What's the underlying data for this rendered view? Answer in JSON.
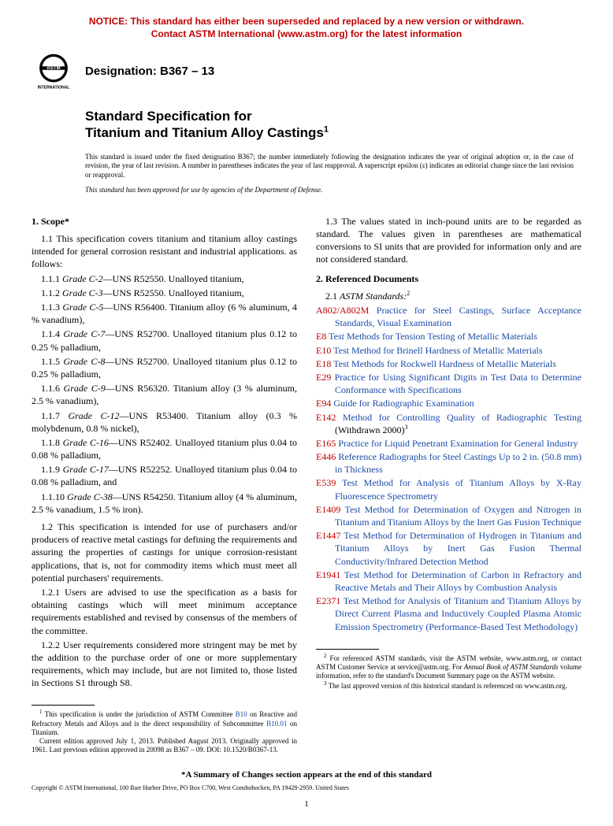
{
  "notice": {
    "line1": "NOTICE: This standard has either been superseded and replaced by a new version or withdrawn.",
    "line2": "Contact ASTM International (www.astm.org) for the latest information"
  },
  "header": {
    "designation_label": "Designation: B367 – 13",
    "doc_type": "Standard Specification for",
    "doc_title": "Titanium and Titanium Alloy Castings",
    "issued_note": "This standard is issued under the fixed designation B367; the number immediately following the designation indicates the year of original adoption or, in the case of revision, the year of last revision. A number in parentheses indicates the year of last reapproval. A superscript epsilon (ε) indicates an editorial change since the last revision or reapproval.",
    "dod_note": "This standard has been approved for use by agencies of the Department of Defense."
  },
  "sections": {
    "scope_head": "1. Scope*",
    "scope_1_1": "1.1 This specification covers titanium and titanium alloy castings intended for general corrosion resistant and industrial applications. as follows:",
    "grades": [
      {
        "num": "1.1.1 ",
        "name": "Grade C-2",
        "rest": "—UNS R52550. Unalloyed titanium,"
      },
      {
        "num": "1.1.2 ",
        "name": "Grade C-3",
        "rest": "—UNS R52550. Unalloyed titanium,"
      },
      {
        "num": "1.1.3 ",
        "name": "Grade C-5",
        "rest": "—UNS R56400. Titanium alloy (6 % aluminum, 4 % vanadium),"
      },
      {
        "num": "1.1.4 ",
        "name": "Grade C-7",
        "rest": "—UNS R52700. Unalloyed titanium plus 0.12 to 0.25 % palladium,"
      },
      {
        "num": "1.1.5 ",
        "name": "Grade C-8",
        "rest": "—UNS R52700. Unalloyed titanium plus 0.12 to 0.25 % palladium,"
      },
      {
        "num": "1.1.6 ",
        "name": "Grade C-9",
        "rest": "—UNS R56320. Titanium alloy (3 % aluminum, 2.5 % vanadium),"
      },
      {
        "num": "1.1.7 ",
        "name": "Grade C-12",
        "rest": "—UNS R53400. Titanium alloy (0.3 % molybdenum, 0.8 % nickel),"
      },
      {
        "num": "1.1.8 ",
        "name": "Grade C-16",
        "rest": "—UNS R52402. Unalloyed titanium plus 0.04 to 0.08 % palladium,"
      },
      {
        "num": "1.1.9 ",
        "name": "Grade C-17",
        "rest": "—UNS R52252. Unalloyed titanium plus 0.04 to 0.08 % palladium, and"
      },
      {
        "num": "1.1.10 ",
        "name": "Grade C-38",
        "rest": "—UNS R54250. Titanium alloy (4 % aluminum, 2.5 % vanadium, 1.5 % iron)."
      }
    ],
    "scope_1_2": "1.2 This specification is intended for use of purchasers and/or producers of reactive metal castings for defining the requirements and assuring the properties of castings for unique corrosion-resistant applications, that is, not for commodity items which must meet all potential purchasers' requirements.",
    "scope_1_2_1": "1.2.1 Users are advised to use the specification as a basis for obtaining castings which will meet minimum acceptance requirements established and revised by consensus of the members of the committee.",
    "scope_1_2_2": "1.2.2 User requirements considered more stringent may be met by the addition to the purchase order of one or more supplementary requirements, which may include, but are not limited to, those listed in Sections S1 through S8.",
    "scope_1_3": "1.3 The values stated in inch-pound units are to be regarded as standard. The values given in parentheses are mathematical conversions to SI units that are provided for information only and are not considered standard.",
    "refdoc_head": "2. Referenced Documents",
    "refdoc_2_1_label": "2.1 ",
    "refdoc_2_1_name": "ASTM Standards:",
    "refs": [
      {
        "code": "A802/A802M",
        "title": " Practice for Steel Castings, Surface Acceptance Standards, Visual Examination",
        "suffix": ""
      },
      {
        "code": "E8",
        "title": " Test Methods for Tension Testing of Metallic Materials",
        "suffix": ""
      },
      {
        "code": "E10",
        "title": " Test Method for Brinell Hardness of Metallic Materials",
        "suffix": ""
      },
      {
        "code": "E18",
        "title": " Test Methods for Rockwell Hardness of Metallic Materials",
        "suffix": ""
      },
      {
        "code": "E29",
        "title": " Practice for Using Significant Digits in Test Data to Determine Conformance with Specifications",
        "suffix": ""
      },
      {
        "code": "E94",
        "title": " Guide for Radiographic Examination",
        "suffix": ""
      },
      {
        "code": "E142",
        "title": " Method for Controlling Quality of Radiographic Testing",
        "suffix": " (Withdrawn 2000)",
        "fn": "3"
      },
      {
        "code": "E165",
        "title": " Practice for Liquid Penetrant Examination for General Industry",
        "suffix": ""
      },
      {
        "code": "E446",
        "title": " Reference Radiographs for Steel Castings Up to 2 in. (50.8 mm) in Thickness",
        "suffix": ""
      },
      {
        "code": "E539",
        "title": " Test Method for Analysis of Titanium Alloys by X-Ray Fluorescence Spectrometry",
        "suffix": ""
      },
      {
        "code": "E1409",
        "title": " Test Method for Determination of Oxygen and Nitrogen in Titanium and Titanium Alloys by the Inert Gas Fusion Technique",
        "suffix": ""
      },
      {
        "code": "E1447",
        "title": " Test Method for Determination of Hydrogen in Titanium and Titanium Alloys by Inert Gas Fusion Thermal Conductivity/Infrared Detection Method",
        "suffix": ""
      },
      {
        "code": "E1941",
        "title": " Test Method for Determination of Carbon in Refractory and Reactive Metals and Their Alloys by Combustion Analysis",
        "suffix": ""
      },
      {
        "code": "E2371",
        "title": " Test Method for Analysis of Titanium and Titanium Alloys by Direct Current Plasma and Inductively Coupled Plasma Atomic Emission Spectrometry (Performance-Based Test Methodology)",
        "suffix": ""
      }
    ]
  },
  "footnotes": {
    "left1_a": "This specification is under the jurisdiction of ASTM Committee ",
    "left1_link1": "B10",
    "left1_b": " on Reactive and Refractory Metals and Alloys and is the direct responsibility of Subcommittee ",
    "left1_link2": "B10.01",
    "left1_c": " on Titanium.",
    "left2": "Current edition approved July 1, 2013. Published August 2013. Originally approved in 1961. Last previous edition approved in 20098 as B367 – 09. DOI: 10.1520/B0367-13.",
    "right1_a": "For referenced ASTM standards, visit the ASTM website, www.astm.org, or contact ASTM Customer Service at service@astm.org. For ",
    "right1_i": "Annual Book of ASTM Standards",
    "right1_b": " volume information, refer to the standard's Document Summary page on the ASTM website.",
    "right2": "The last approved version of this historical standard is referenced on www.astm.org."
  },
  "footer": {
    "summary": "*A Summary of Changes section appears at the end of this standard",
    "copyright": "Copyright © ASTM International, 100 Barr Harbor Drive, PO Box C700, West Conshohocken, PA 19428-2959. United States",
    "page": "1"
  },
  "colors": {
    "notice": "#c00000",
    "link": "#1a4aa8",
    "refcode": "#c00000"
  }
}
